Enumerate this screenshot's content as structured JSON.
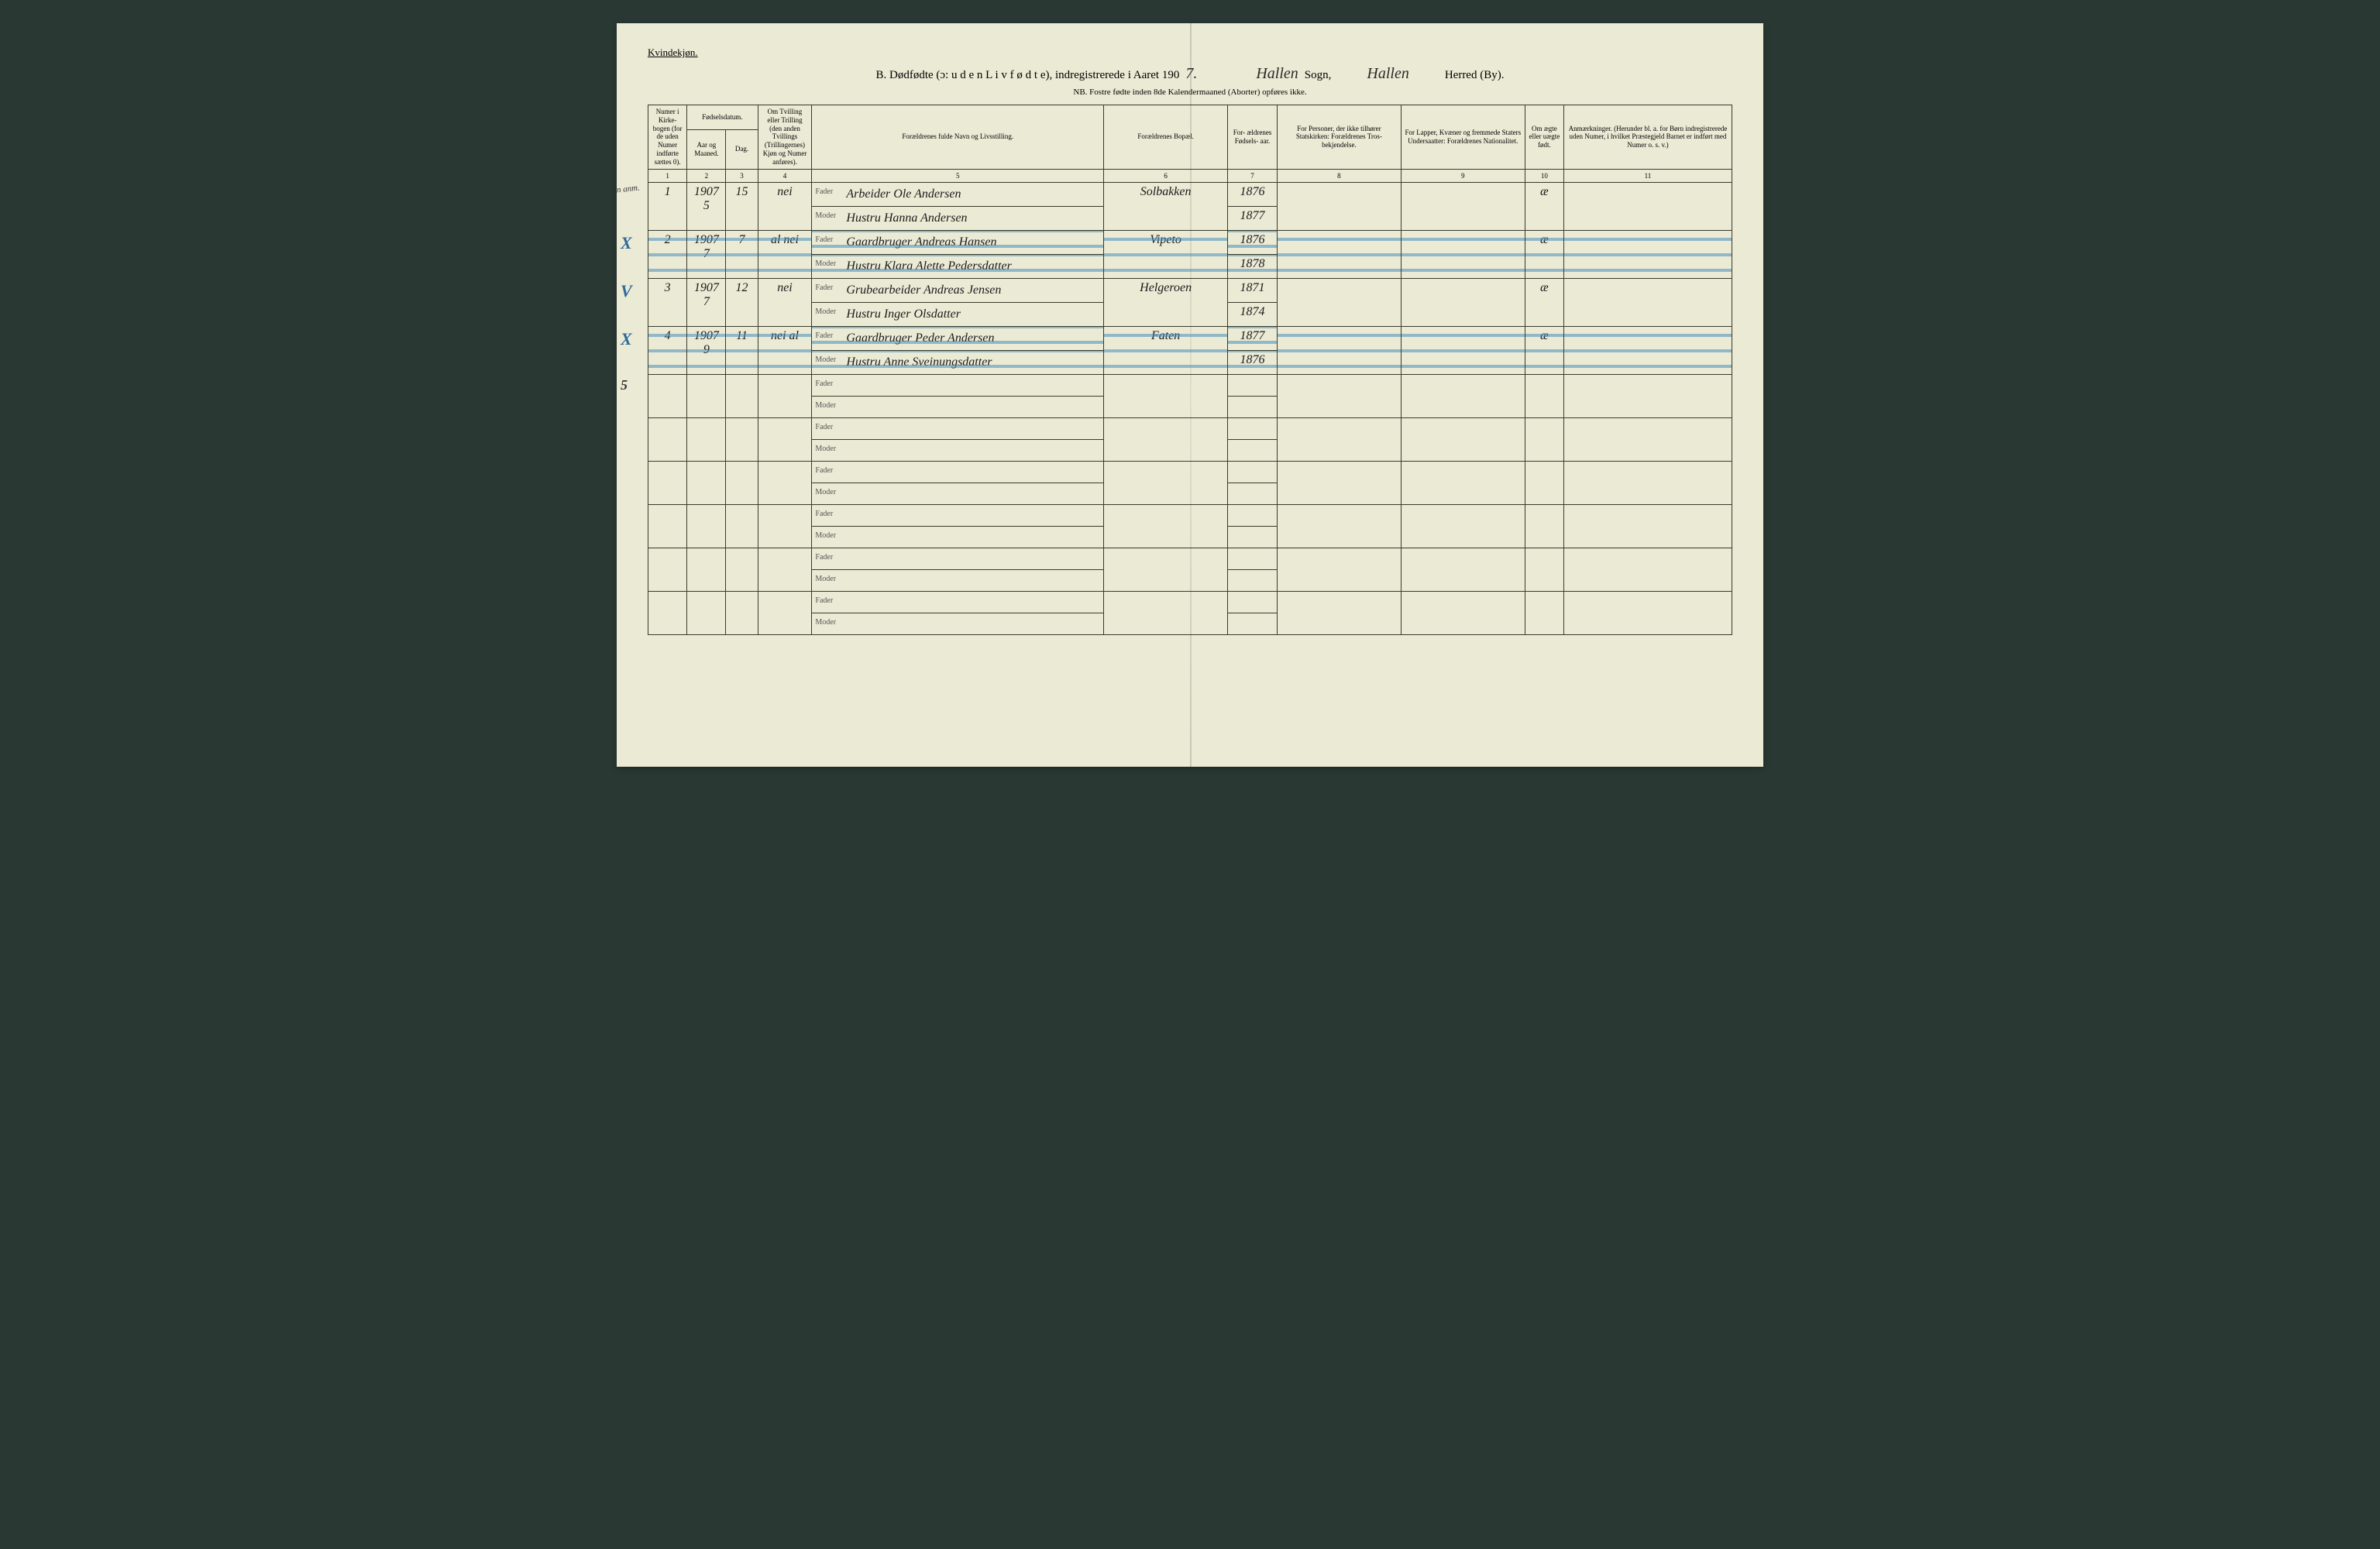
{
  "colors": {
    "paper": "#ebead5",
    "ink": "#1a1a1a",
    "rule": "#3a3a2a",
    "blue_pencil": "#4a8dba",
    "background": "#2a3833"
  },
  "typography": {
    "printed_font": "Georgia, serif",
    "handwritten_font": "Brush Script MT, cursive",
    "title_font_size_pt": 15,
    "header_font_size_pt": 9
  },
  "header": {
    "gender_label": "Kvindekjøn.",
    "title_prefix": "B.  Dødfødte (ɔ:  u d e n  L i v  f ø d t e), indregistrerede i Aaret 190",
    "year_suffix_hand": "7.",
    "sogn_hand": "Hallen",
    "sogn_label": "Sogn,",
    "herred_hand": "Hallen",
    "herred_label": "Herred (By).",
    "sub_note": "NB. Fostre fødte inden 8de Kalendermaaned (Aborter) opføres ikke."
  },
  "columns": [
    {
      "num": "1",
      "label": "Numer i Kirke-\nbogen (for de uden Numer indførte sættes 0)."
    },
    {
      "num": "2",
      "label": "Aar og Maaned."
    },
    {
      "num": "3",
      "label": "Dag."
    },
    {
      "num": "4",
      "label": "Om Tvilling eller Trilling (den anden Tvillings (Trillingernes) Kjøn og Numer anføres)."
    },
    {
      "num": "5",
      "label": "Forældrenes fulde Navn og Livsstilling."
    },
    {
      "num": "6",
      "label": "Forældrenes Bopæl."
    },
    {
      "num": "7",
      "label": "For-\nældrenes Fødsels-\naar."
    },
    {
      "num": "8",
      "label": "For Personer, der ikke tilhører Statskirken: Forældrenes Tros-\nbekjendelse."
    },
    {
      "num": "9",
      "label": "For Lapper, Kvæner og fremmede Staters Undersaatter: Forældrenes Nationalitet."
    },
    {
      "num": "10",
      "label": "Om ægte eller uægte født."
    },
    {
      "num": "11",
      "label": "Anmærkninger.\n(Herunder bl. a. for Børn indregistrerede uden Numer, i hvilket Præstegjeld Barnet er indført med Numer o. s. v.)"
    }
  ],
  "col_header_group": {
    "fodsel_label": "Fødselsdatum."
  },
  "role_labels": {
    "fader": "Fader",
    "moder": "Moder"
  },
  "entries": [
    {
      "margin_mark": "",
      "margin_note": "ingen anm.",
      "num": "1",
      "year_month": "1907\n5",
      "day": "15",
      "twin": "nei",
      "fader": "Arbeider Ole Andersen",
      "moder": "Hustru Hanna Andersen",
      "bopael": "Solbakken",
      "fader_aar": "1876",
      "moder_aar": "1877",
      "aegte": "æ",
      "struck": false
    },
    {
      "margin_mark": "X",
      "num": "2",
      "year_month": "1907\n7",
      "day": "7",
      "twin": "al nei",
      "fader": "Gaardbruger Andreas Hansen",
      "moder": "Hustru Klara Alette Pedersdatter",
      "bopael": "Vipeto",
      "fader_aar": "1876",
      "moder_aar": "1878",
      "aegte": "æ",
      "struck": true
    },
    {
      "margin_mark": "V",
      "num": "3",
      "year_month": "1907\n7",
      "day": "12",
      "twin": "nei",
      "fader": "Grubearbeider Andreas Jensen",
      "moder": "Hustru Inger Olsdatter",
      "bopael": "Helgeroen",
      "fader_aar": "1871",
      "moder_aar": "1874",
      "aegte": "æ",
      "struck": false
    },
    {
      "margin_mark": "X",
      "num": "4",
      "year_month": "1907\n9",
      "day": "11",
      "twin": "nei al",
      "fader": "Gaardbruger Peder Andersen",
      "moder": "Hustru Anne Sveinungsdatter",
      "bopael": "Faten",
      "fader_aar": "1877",
      "moder_aar": "1876",
      "aegte": "æ",
      "struck": true
    }
  ],
  "blank_entry_margin": "5",
  "blank_rows_after": 5
}
